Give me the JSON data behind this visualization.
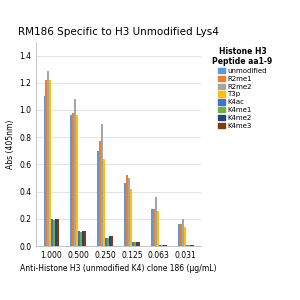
{
  "title": "RM186 Specific to H3 Unmodified Lys4",
  "xlabel": "Anti-Histone H3 (unmodified K4) clone 186 (μg/mL)",
  "ylabel": "Abs (405nm)",
  "legend_title": "Histone H3\nPeptide aa1-9",
  "categories": [
    "1.000",
    "0.500",
    "0.250",
    "0.125",
    "0.063",
    "0.031"
  ],
  "series_labels": [
    "unmodified",
    "R2me1",
    "R2me2",
    "T3p",
    "K4ac",
    "K4me1",
    "K4me2",
    "K4me3"
  ],
  "series_colors": [
    "#5B9BD5",
    "#ED7D31",
    "#A5A5A5",
    "#FFC000",
    "#4472C4",
    "#70AD47",
    "#264478",
    "#843C0C"
  ],
  "data": {
    "unmodified": [
      1.1,
      0.96,
      0.7,
      0.46,
      0.27,
      0.16
    ],
    "R2me1": [
      1.22,
      0.98,
      0.77,
      0.52,
      0.27,
      0.16
    ],
    "R2me2": [
      1.29,
      1.08,
      0.9,
      0.5,
      0.36,
      0.2
    ],
    "T3p": [
      1.22,
      0.96,
      0.64,
      0.42,
      0.26,
      0.14
    ],
    "K4ac": [
      0.2,
      0.11,
      0.06,
      0.03,
      0.01,
      0.01
    ],
    "K4me1": [
      0.19,
      0.1,
      0.06,
      0.03,
      0.01,
      0.01
    ],
    "K4me2": [
      0.2,
      0.11,
      0.07,
      0.03,
      0.01,
      0.01
    ],
    "K4me3": [
      0.2,
      0.11,
      0.07,
      0.03,
      0.01,
      0.01
    ]
  },
  "ylim": [
    0,
    1.5
  ],
  "yticks": [
    0.0,
    0.2,
    0.4,
    0.6,
    0.8,
    1.0,
    1.2,
    1.4
  ],
  "bar_width": 0.072,
  "background_color": "#FFFFFF",
  "plot_bg_color": "#FFFFFF",
  "grid_color": "#D8D8D8",
  "title_fontsize": 7.5,
  "label_fontsize": 5.5,
  "tick_fontsize": 5.5,
  "legend_fontsize": 5.0,
  "legend_title_fontsize": 5.5
}
